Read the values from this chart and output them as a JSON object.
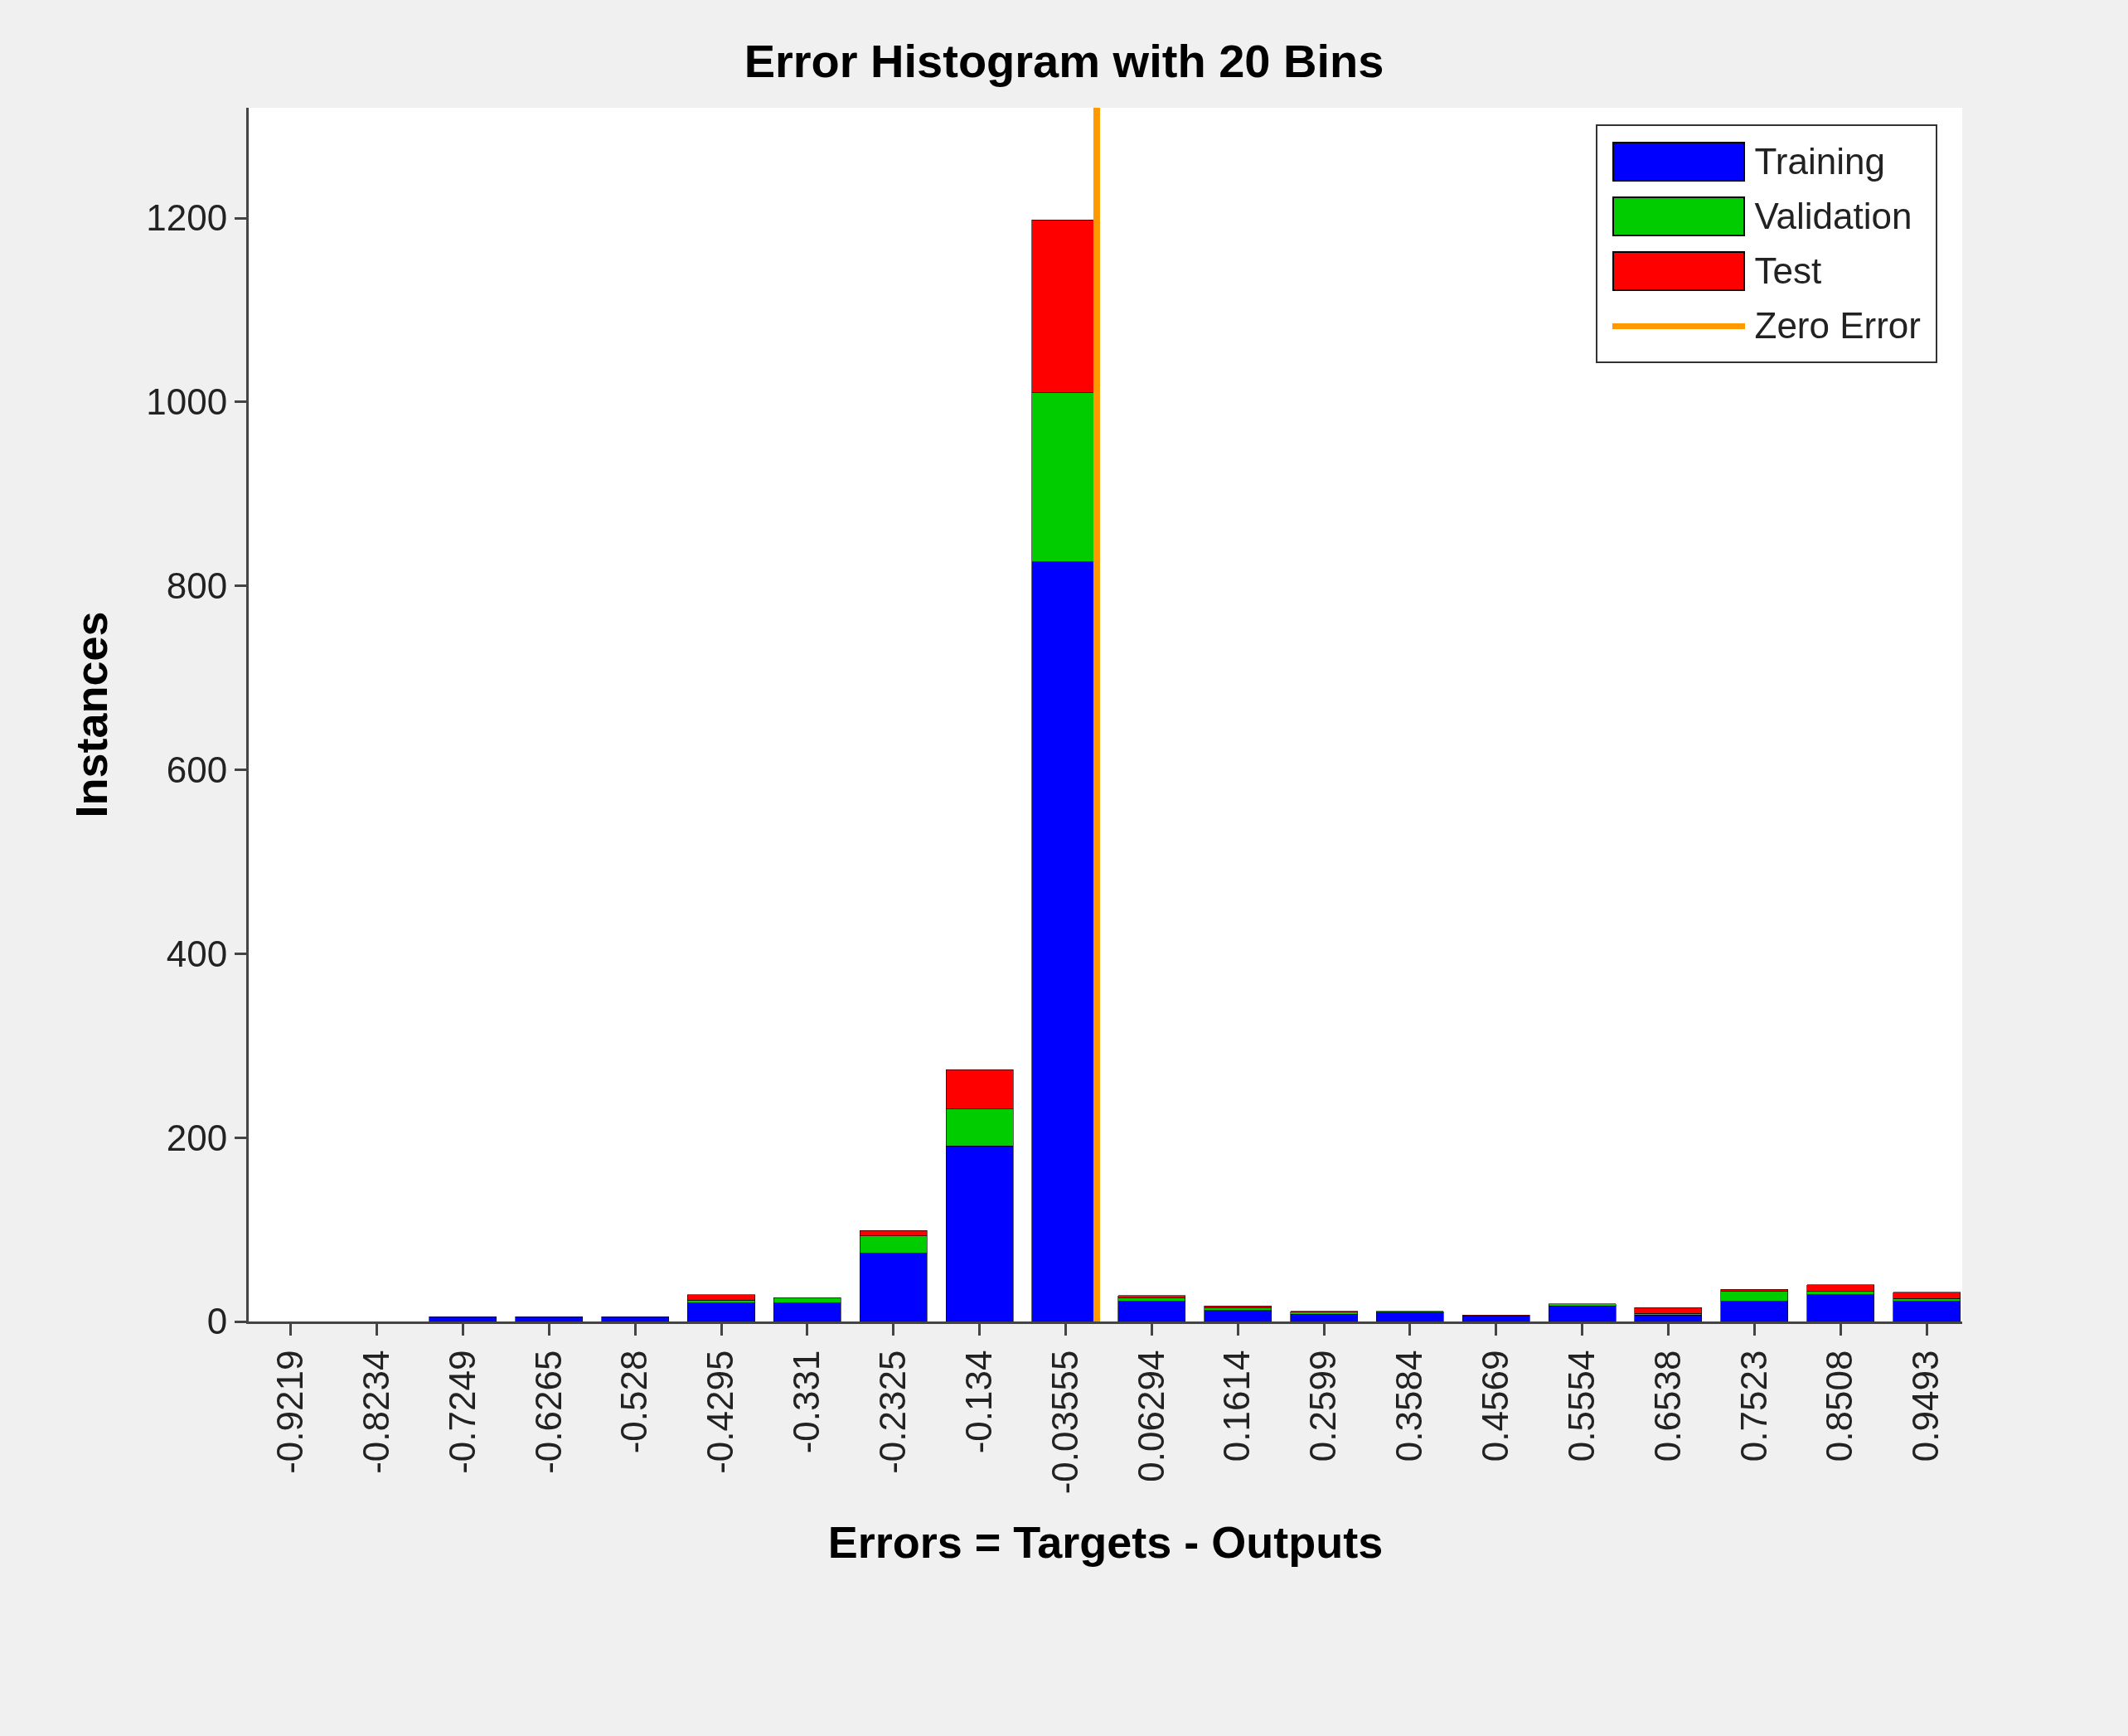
{
  "chart_data": {
    "type": "bar",
    "stacked": true,
    "title": "Error Histogram with 20 Bins",
    "xlabel": "Errors = Targets - Outputs",
    "ylabel": "Instances",
    "x": [
      -0.9219,
      -0.8234,
      -0.7249,
      -0.6265,
      -0.528,
      -0.4295,
      -0.331,
      -0.2325,
      -0.134,
      -0.03555,
      0.06294,
      0.1614,
      0.2599,
      0.3584,
      0.4569,
      0.5554,
      0.6538,
      0.7523,
      0.8508,
      0.9493
    ],
    "xlim": [
      -0.97,
      0.99
    ],
    "xticks": [
      -0.9219,
      -0.8234,
      -0.7249,
      -0.6265,
      -0.528,
      -0.4295,
      -0.331,
      -0.2325,
      -0.134,
      -0.03555,
      0.06294,
      0.1614,
      0.2599,
      0.3584,
      0.4569,
      0.5554,
      0.6538,
      0.7523,
      0.8508,
      0.9493
    ],
    "ylim": [
      0,
      1320
    ],
    "yticks": [
      0,
      200,
      400,
      600,
      800,
      1000,
      1200
    ],
    "series": [
      {
        "name": "Training",
        "color": "#0000ff",
        "values": [
          0,
          0,
          5,
          5,
          5,
          20,
          20,
          74,
          191,
          826,
          22,
          12,
          8,
          10,
          6,
          17,
          7,
          22,
          29,
          22
        ]
      },
      {
        "name": "Validation",
        "color": "#00cc00",
        "values": [
          0,
          0,
          0,
          0,
          0,
          3,
          6,
          19,
          40,
          184,
          4,
          3,
          2,
          1,
          null,
          2,
          2,
          11,
          4,
          3
        ]
      },
      {
        "name": "Test",
        "color": "#ff0000",
        "values": [
          0,
          0,
          0,
          0,
          0,
          6,
          0,
          6,
          43,
          188,
          2,
          2,
          1,
          0,
          1,
          0,
          6,
          2,
          7,
          7
        ]
      },
      {
        "name": "Zero Error",
        "type": "line",
        "color": "#ff9900",
        "x": [
          0,
          0
        ],
        "values": [
          0,
          1320
        ]
      }
    ],
    "legend": "top right",
    "grid": false
  }
}
